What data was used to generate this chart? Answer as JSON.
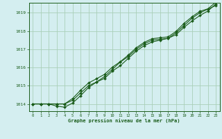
{
  "xlabel": "Graphe pression niveau de la mer (hPa)",
  "bg_color": "#d4eef0",
  "grid_color": "#aacfb8",
  "line_color": "#1a5c1a",
  "marker_color": "#1a5c1a",
  "ylim": [
    1013.6,
    1019.55
  ],
  "xlim": [
    -0.5,
    23.5
  ],
  "yticks": [
    1014,
    1015,
    1016,
    1017,
    1018,
    1019
  ],
  "xticks": [
    0,
    1,
    2,
    3,
    4,
    5,
    6,
    7,
    8,
    9,
    10,
    11,
    12,
    13,
    14,
    15,
    16,
    17,
    18,
    19,
    20,
    21,
    22,
    23
  ],
  "series1": [
    1014.0,
    1014.0,
    1014.0,
    1014.0,
    1014.0,
    1014.2,
    1014.6,
    1015.0,
    1015.2,
    1015.4,
    1015.8,
    1016.1,
    1016.5,
    1016.9,
    1017.2,
    1017.4,
    1017.5,
    1017.6,
    1017.9,
    1018.3,
    1018.7,
    1019.0,
    1019.2,
    1019.4
  ],
  "series2": [
    1014.0,
    1014.0,
    1014.0,
    1013.88,
    1013.82,
    1014.05,
    1014.45,
    1014.9,
    1015.2,
    1015.5,
    1015.9,
    1016.3,
    1016.6,
    1017.0,
    1017.3,
    1017.5,
    1017.55,
    1017.6,
    1017.8,
    1018.2,
    1018.55,
    1018.85,
    1019.1,
    1019.48
  ],
  "series3": [
    1014.0,
    1014.0,
    1014.0,
    1014.0,
    1014.0,
    1014.3,
    1014.75,
    1015.15,
    1015.38,
    1015.62,
    1016.02,
    1016.32,
    1016.68,
    1017.08,
    1017.38,
    1017.58,
    1017.63,
    1017.68,
    1017.98,
    1018.42,
    1018.78,
    1019.08,
    1019.22,
    1019.58
  ]
}
